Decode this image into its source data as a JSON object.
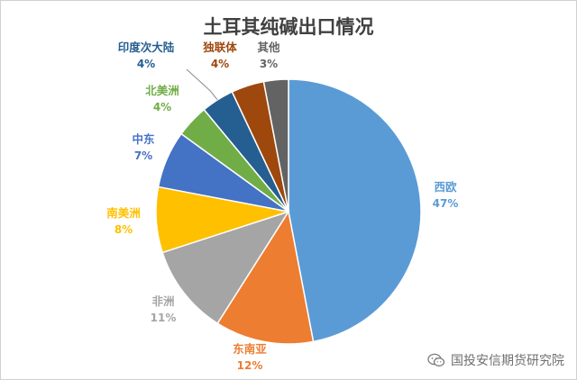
{
  "chart_data": {
    "type": "pie",
    "title": "土耳其纯碱出口情况",
    "slices": [
      {
        "label": "西欧",
        "value_text": "47%",
        "value": 47,
        "color": "#5b9bd5"
      },
      {
        "label": "东南亚",
        "value_text": "12%",
        "value": 12,
        "color": "#ed7d31"
      },
      {
        "label": "非洲",
        "value_text": "11%",
        "value": 11,
        "color": "#a5a5a5"
      },
      {
        "label": "南美洲",
        "value_text": "8%",
        "value": 8,
        "color": "#ffc000"
      },
      {
        "label": "中东",
        "value_text": "7%",
        "value": 7,
        "color": "#4472c4"
      },
      {
        "label": "北美洲",
        "value_text": "4%",
        "value": 4,
        "color": "#70ad47"
      },
      {
        "label": "印度次大陆",
        "value_text": "4%",
        "value": 4,
        "color": "#255e91"
      },
      {
        "label": "独联体",
        "value_text": "4%",
        "value": 4,
        "color": "#9e480e"
      },
      {
        "label": "其他",
        "value_text": "3%",
        "value": 3,
        "color": "#636363"
      }
    ],
    "legend": "none"
  },
  "watermark": {
    "text": "国投安信期货研究院",
    "icon": "wechat-icon"
  }
}
